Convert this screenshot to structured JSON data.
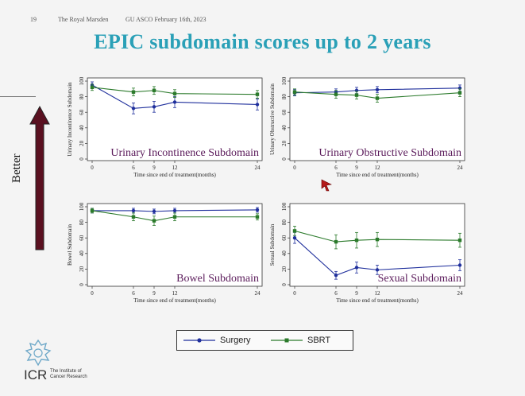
{
  "header": {
    "page_number": "19",
    "organization": "The Royal Marsden",
    "event": "GU ASCO February 16th, 2023"
  },
  "slide_title": "EPIC subdomain scores up to 2 years",
  "side_label": "Better",
  "colors": {
    "surgery": "#1f2f9c",
    "sbrt": "#2b7a2b",
    "title": "#2aa0b7",
    "arrow": "#5a1020"
  },
  "chart_data": [
    {
      "type": "line",
      "title": "Urinary Incontinence Subdomain",
      "ylabel": "Urinary Incontinence Subdomain",
      "xlabel": "Time since end of treatment(months)",
      "x": [
        0,
        6,
        9,
        12,
        24
      ],
      "xticks": [
        "0",
        "6",
        "9",
        "12",
        "24"
      ],
      "yticks": [
        "0",
        "20",
        "40",
        "60",
        "80",
        "100"
      ],
      "ylim": [
        0,
        100
      ],
      "series": [
        {
          "name": "Surgery",
          "values": [
            95,
            65,
            67,
            73,
            70
          ],
          "err": [
            4,
            7,
            7,
            7,
            7
          ]
        },
        {
          "name": "SBRT",
          "values": [
            92,
            86,
            88,
            84,
            83
          ],
          "err": [
            4,
            5,
            5,
            5,
            5
          ]
        }
      ]
    },
    {
      "type": "line",
      "title": "Urinary Obstructive Subdomain",
      "ylabel": "Urinary Obstructive Subdomain",
      "xlabel": "Time since end of treatment(months)",
      "x": [
        0,
        6,
        9,
        12,
        24
      ],
      "xticks": [
        "0",
        "6",
        "9",
        "12",
        "24"
      ],
      "yticks": [
        "0",
        "20",
        "40",
        "60",
        "80",
        "100"
      ],
      "ylim": [
        0,
        100
      ],
      "series": [
        {
          "name": "Surgery",
          "values": [
            85,
            86,
            88,
            89,
            91
          ],
          "err": [
            4,
            4,
            4,
            4,
            4
          ]
        },
        {
          "name": "SBRT",
          "values": [
            86,
            83,
            82,
            78,
            85
          ],
          "err": [
            4,
            5,
            5,
            5,
            5
          ]
        }
      ]
    },
    {
      "type": "line",
      "title": "Bowel Subdomain",
      "ylabel": "Bowel Subdomain",
      "xlabel": "Time since end of treatment(months)",
      "x": [
        0,
        6,
        9,
        12,
        24
      ],
      "xticks": [
        "0",
        "6",
        "9",
        "12",
        "24"
      ],
      "yticks": [
        "0",
        "20",
        "40",
        "60",
        "80",
        "100"
      ],
      "ylim": [
        0,
        100
      ],
      "series": [
        {
          "name": "Surgery",
          "values": [
            95,
            95,
            94,
            95,
            96
          ],
          "err": [
            3,
            3,
            3,
            3,
            3
          ]
        },
        {
          "name": "SBRT",
          "values": [
            95,
            87,
            82,
            87,
            87
          ],
          "err": [
            3,
            5,
            6,
            5,
            4
          ]
        }
      ]
    },
    {
      "type": "line",
      "title": "Sexual Subdomain",
      "ylabel": "Sexual Subdomain",
      "xlabel": "Time since end of treatment(months)",
      "x": [
        0,
        6,
        9,
        12,
        24
      ],
      "xticks": [
        "0",
        "6",
        "9",
        "12",
        "24"
      ],
      "yticks": [
        "0",
        "20",
        "40",
        "60",
        "80",
        "100"
      ],
      "ylim": [
        0,
        100
      ],
      "series": [
        {
          "name": "Surgery",
          "values": [
            60,
            12,
            22,
            19,
            25
          ],
          "err": [
            7,
            5,
            7,
            6,
            7
          ]
        },
        {
          "name": "SBRT",
          "values": [
            69,
            55,
            57,
            58,
            57
          ],
          "err": [
            6,
            9,
            10,
            9,
            9
          ]
        }
      ]
    }
  ],
  "legend": {
    "items": [
      "Surgery",
      "SBRT"
    ]
  },
  "logo": {
    "brand": "ICR",
    "caption": "The Institute of Cancer Research"
  }
}
